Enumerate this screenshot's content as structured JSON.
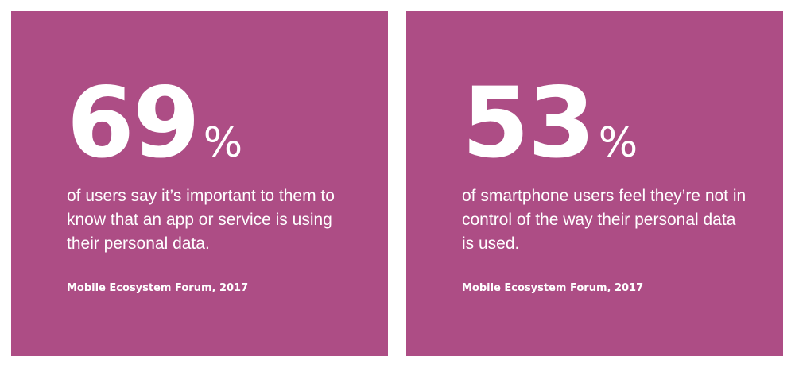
{
  "colors": {
    "card_background": "#ad4d85",
    "text": "#ffffff",
    "page_background": "#ffffff"
  },
  "cards": [
    {
      "number": "69",
      "percent_sign": "%",
      "description": "of users say it’s important to them to know that an app or service is using their personal data.",
      "source": "Mobile Ecosystem Forum, 2017"
    },
    {
      "number": "53",
      "percent_sign": "%",
      "description": "of smartphone users feel they’re not in control of the way their personal data is used.",
      "source": "Mobile Ecosystem Forum, 2017"
    }
  ]
}
